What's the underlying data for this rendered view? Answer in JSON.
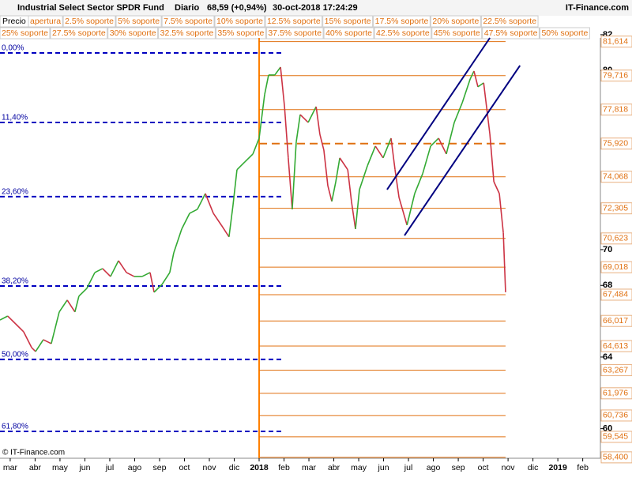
{
  "chart_data": {
    "type": "price",
    "title": "Industrial Select Sector SPDR Fund",
    "period": "Diario",
    "last_price": "68,59 (+0,94%)",
    "timestamp": "30-oct-2018 17:24:29",
    "brand": "IT-Finance.com",
    "watermark": "© IT-Finance.com",
    "legend_price": "Precio",
    "legend_row1": [
      "apertura",
      "2.5% soporte",
      "5% soporte",
      "7.5% soporte",
      "10% soporte",
      "12.5% soporte",
      "15% soporte",
      "17.5% soporte",
      "20% soporte",
      "22.5% soporte"
    ],
    "legend_row2": [
      "25% soporte",
      "27.5% soporte",
      "30% soporte",
      "32.5% soporte",
      "35% soporte",
      "37.5% soporte",
      "40% soporte",
      "42.5% soporte",
      "45% soporte",
      "47.5% soporte",
      "50% soporte"
    ],
    "up_color": "#33aa33",
    "down_color": "#cc3344",
    "x": [
      -0.41,
      -0.1,
      0.22,
      0.54,
      0.86,
      1.02,
      1.33,
      1.65,
      1.97,
      2.29,
      2.6,
      2.76,
      3.08,
      3.4,
      3.71,
      4.03,
      4.35,
      4.67,
      4.98,
      5.3,
      5.62,
      5.78,
      6.1,
      6.41,
      6.57,
      6.89,
      7.21,
      7.52,
      7.84,
      8.16,
      8.48,
      8.79,
      8.95,
      9.11,
      9.43,
      9.75,
      10.0,
      10.22,
      10.38,
      10.63,
      10.86,
      11.02,
      11.17,
      11.33,
      11.49,
      11.65,
      11.97,
      12.29,
      12.44,
      12.6,
      12.76,
      12.92,
      13.08,
      13.24,
      13.56,
      13.71,
      13.87,
      14.03,
      14.35,
      14.67,
      14.98,
      15.3,
      15.46,
      15.62,
      15.94,
      16.25,
      16.57,
      16.89,
      17.21,
      17.52,
      17.84,
      18.16,
      18.48,
      18.63,
      18.79,
      19.02,
      19.27,
      19.43,
      19.65,
      19.81,
      19.9
    ],
    "values": [
      66.07,
      66.29,
      65.85,
      65.41,
      64.53,
      64.31,
      64.97,
      64.75,
      66.52,
      67.18,
      66.52,
      67.4,
      67.84,
      68.72,
      68.94,
      68.5,
      69.38,
      68.72,
      68.5,
      68.5,
      68.72,
      67.62,
      68.06,
      68.72,
      69.82,
      71.15,
      72.03,
      72.25,
      73.13,
      72.03,
      71.37,
      70.71,
      72.47,
      74.46,
      74.9,
      75.34,
      76.22,
      78.65,
      79.75,
      79.75,
      80.19,
      77.98,
      75.12,
      72.25,
      76.0,
      77.54,
      77.1,
      77.98,
      76.44,
      75.56,
      73.57,
      72.69,
      73.79,
      75.12,
      74.46,
      72.69,
      71.15,
      73.35,
      74.68,
      75.78,
      75.12,
      76.22,
      74.46,
      72.91,
      71.37,
      73.13,
      74.24,
      75.78,
      76.22,
      75.34,
      77.1,
      78.2,
      79.53,
      79.97,
      79.09,
      79.31,
      76.44,
      73.79,
      73.13,
      70.93,
      67.62
    ],
    "xlim": [
      -0.41,
      23.71
    ],
    "ylim": [
      58.35,
      81.82
    ],
    "xticks": [
      {
        "value": 0,
        "label": "mar"
      },
      {
        "value": 1,
        "label": "abr"
      },
      {
        "value": 2,
        "label": "may"
      },
      {
        "value": 3,
        "label": "jun"
      },
      {
        "value": 4,
        "label": "jul"
      },
      {
        "value": 5,
        "label": "ago"
      },
      {
        "value": 6,
        "label": "sep"
      },
      {
        "value": 7,
        "label": "oct"
      },
      {
        "value": 8,
        "label": "nov"
      },
      {
        "value": 9,
        "label": "dic"
      },
      {
        "value": 10,
        "label": "2018"
      },
      {
        "value": 11,
        "label": "feb"
      },
      {
        "value": 12,
        "label": "mar"
      },
      {
        "value": 13,
        "label": "abr"
      },
      {
        "value": 14,
        "label": "may"
      },
      {
        "value": 15,
        "label": "jun"
      },
      {
        "value": 16,
        "label": "jul"
      },
      {
        "value": 17,
        "label": "ago"
      },
      {
        "value": 18,
        "label": "sep"
      },
      {
        "value": 19,
        "label": "oct"
      },
      {
        "value": 20,
        "label": "nov"
      },
      {
        "value": 21,
        "label": "dic"
      },
      {
        "value": 22,
        "label": "2019"
      },
      {
        "value": 23,
        "label": "feb"
      }
    ],
    "yticks": [
      60,
      64,
      68,
      70,
      80,
      82
    ],
    "levels": [
      {
        "value": 81.614,
        "label": "81,614"
      },
      {
        "value": 79.716,
        "label": "79,716"
      },
      {
        "value": 77.818,
        "label": "77,818"
      },
      {
        "value": 75.92,
        "label": "75,920",
        "style": "dashed"
      },
      {
        "value": 74.068,
        "label": "74,068"
      },
      {
        "value": 72.305,
        "label": "72,305"
      },
      {
        "value": 70.623,
        "label": "70,623"
      },
      {
        "value": 69.018,
        "label": "69,018"
      },
      {
        "value": 67.484,
        "label": "67,484"
      },
      {
        "value": 66.017,
        "label": "66,017"
      },
      {
        "value": 64.613,
        "label": "64,613"
      },
      {
        "value": 63.267,
        "label": "63,267"
      },
      {
        "value": 61.976,
        "label": "61,976"
      },
      {
        "value": 60.736,
        "label": "60,736"
      },
      {
        "value": 59.545,
        "label": "59,545"
      },
      {
        "value": 58.4,
        "label": "58,400"
      }
    ],
    "level_color": "#e07010",
    "level_start": 10.0,
    "level_end": 19.9,
    "retracements": [
      {
        "label": "0,00%",
        "price": 80.98
      },
      {
        "label": "11,40%",
        "price": 77.1
      },
      {
        "label": "23,60%",
        "price": 72.96
      },
      {
        "label": "38,20%",
        "price": 67.97
      },
      {
        "label": "50,00%",
        "price": 63.87
      },
      {
        "label": "61,80%",
        "price": 59.85
      }
    ],
    "retracement_color": "#0000c0",
    "retracement_end": 10.92,
    "trendlines": [
      {
        "color": "#000080",
        "points": [
          [
            15.14,
            73.35
          ],
          [
            19.27,
            81.82
          ]
        ]
      },
      {
        "color": "#000080",
        "points": [
          [
            15.84,
            70.79
          ],
          [
            20.48,
            80.28
          ]
        ]
      }
    ],
    "vline": {
      "x": 10.0,
      "color": "#ff8000"
    }
  }
}
